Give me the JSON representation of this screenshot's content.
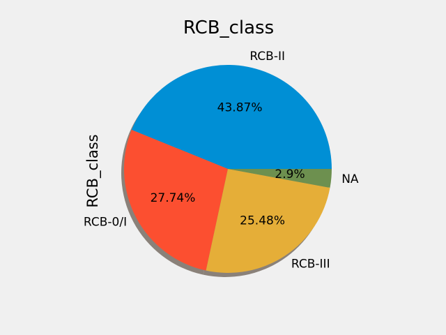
{
  "chart_data": {
    "type": "pie",
    "title": "RCB_class",
    "ylabel": "RCB_class",
    "xlabel": "",
    "shadow": true,
    "start_angle_deg": 0,
    "direction": "counterclockwise",
    "slices": [
      {
        "label": "RCB-II",
        "value": 43.87,
        "pct_text": "43.87%",
        "color": "#008fd5"
      },
      {
        "label": "RCB-0/I",
        "value": 27.74,
        "pct_text": "27.74%",
        "color": "#fc4f30"
      },
      {
        "label": "RCB-III",
        "value": 25.48,
        "pct_text": "25.48%",
        "color": "#e5ae38"
      },
      {
        "label": "NA",
        "value": 2.9,
        "pct_text": "2.9%",
        "color": "#6d904f"
      }
    ]
  }
}
